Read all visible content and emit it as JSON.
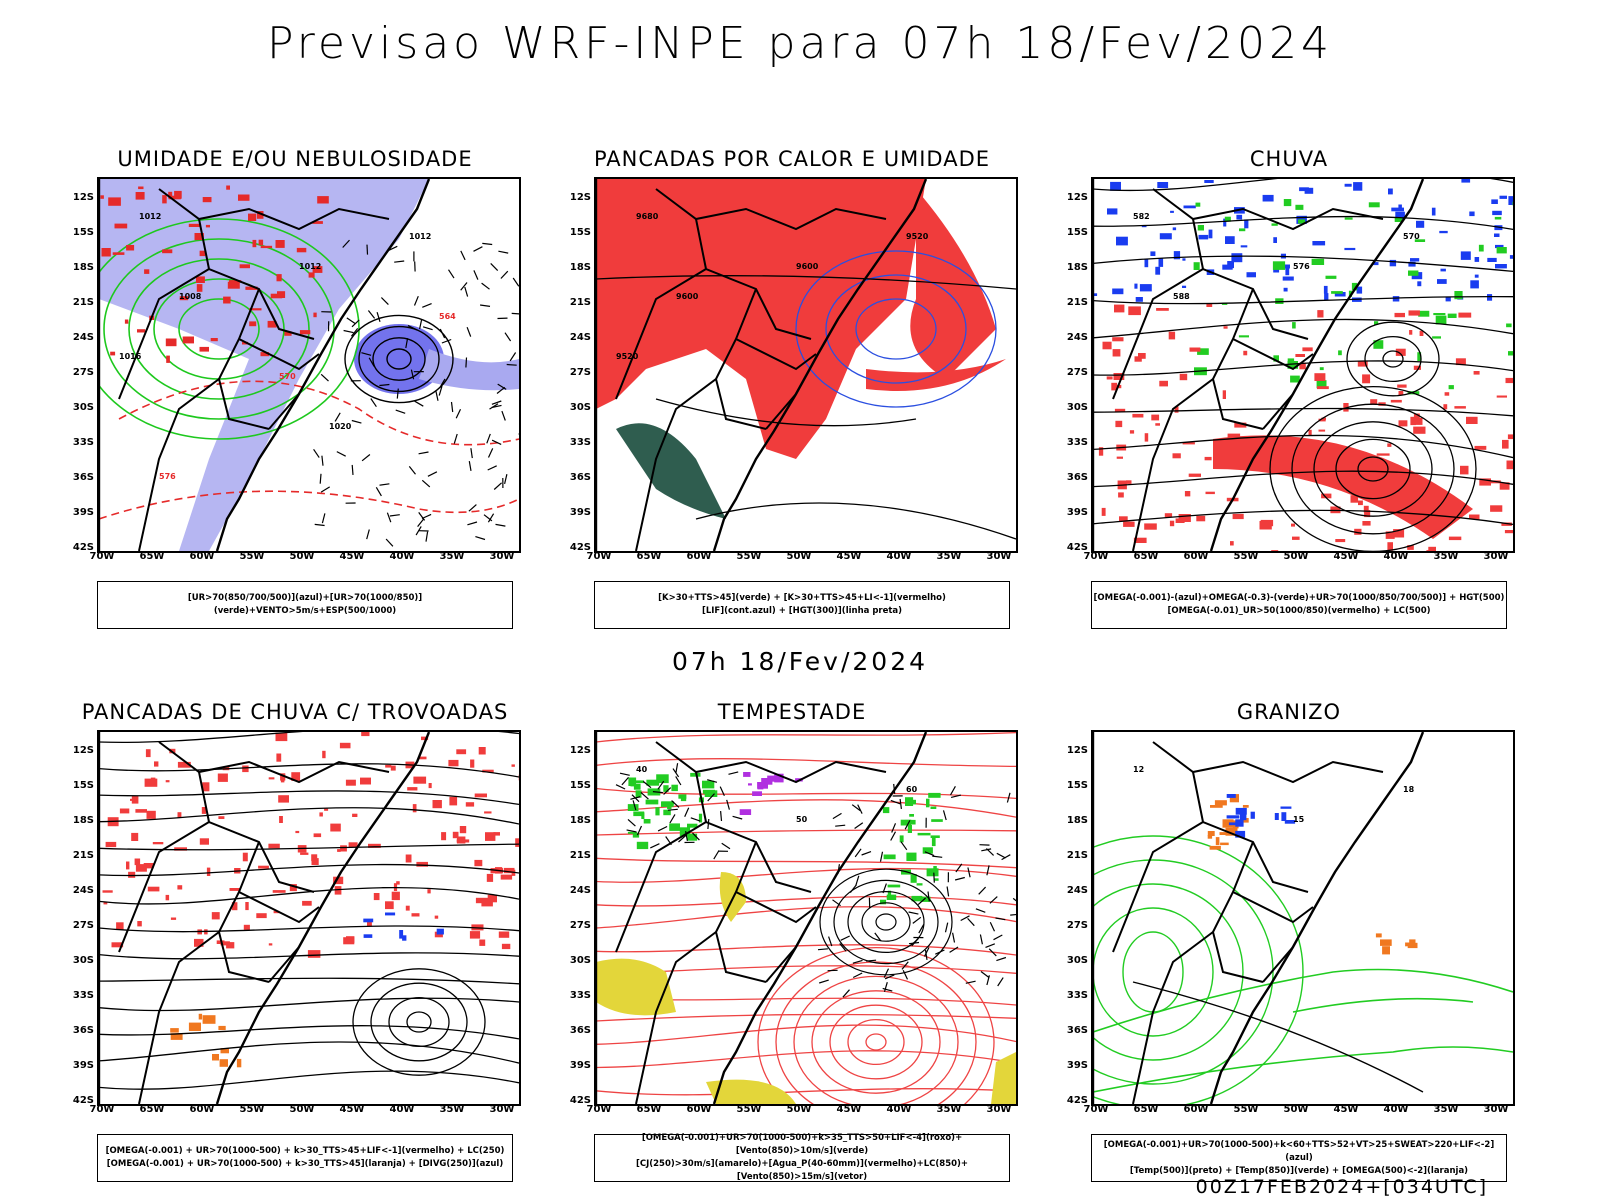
{
  "header": {
    "title": "Previsao WRF-INPE  para 07h 18/Fev/2024",
    "mid_title": "07h 18/Fev/2024",
    "footer": "00Z17FEB2024+[034UTC]"
  },
  "axes": {
    "lat_labels": [
      "12S",
      "15S",
      "18S",
      "21S",
      "24S",
      "27S",
      "30S",
      "33S",
      "36S",
      "39S",
      "42S"
    ],
    "lon_labels": [
      "70W",
      "65W",
      "60W",
      "55W",
      "50W",
      "45W",
      "40W",
      "35W",
      "30W"
    ]
  },
  "panels": [
    {
      "title": "UMIDADE E/OU NEBULOSIDADE",
      "legend": [
        "[UR>70(850/700/500)](azul)+[UR>70(1000/850)](verde)+VENTO>5m/s+ESP(500/1000)"
      ],
      "contour_labels": [
        "1012",
        "1012",
        "1012",
        "1008",
        "1016",
        "1020",
        "576",
        "570",
        "564"
      ],
      "colors": {
        "fill": "#a9a9f0",
        "line1": "#1ec81e",
        "line2": "#e52a2a"
      }
    },
    {
      "title": "PANCADAS POR CALOR E UMIDADE",
      "legend": [
        "[K>30+TTS>45](verde) + [K>30+TTS>45+LI<-1](vermelho)",
        "[LIF](cont.azul) + [HGT(300)](linha preta)"
      ],
      "contour_labels": [
        "9680",
        "9600",
        "9520",
        "9600",
        "9520"
      ],
      "colors": {
        "fill": "#f03c3c",
        "fill2": "#2f5d4f",
        "line1": "#2b4fe0"
      }
    },
    {
      "title": "CHUVA",
      "legend": [
        "[OMEGA(-0.001)-(azul)+OMEGA(-0.3)-(verde)+UR>70(1000/850/700/500)] + HGT(500)",
        "[OMEGA(-0.01)_UR>50(1000/850)(vermelho) + LC(500)"
      ],
      "contour_labels": [
        "582",
        "576",
        "570",
        "588"
      ],
      "colors": {
        "fill": "#f03c3c",
        "fill2": "#1a3cf0",
        "fill3": "#22cc22"
      }
    },
    {
      "title": "PANCADAS DE CHUVA C/ TROVOADAS",
      "legend": [
        "[OMEGA(-0.001) + UR>70(1000-500) + k>30_TTS>45+LIF<-1](vermelho) + LC(250)",
        "[OMEGA(-0.001) + UR>70(1000-500) + k>30_TTS>45](laranja) + [DIVG(250)](azul)"
      ],
      "contour_labels": [],
      "colors": {
        "fill": "#f03c3c",
        "fill2": "#f07820",
        "fill3": "#1a3cf0"
      }
    },
    {
      "title": "TEMPESTADE",
      "legend": [
        "[OMEGA(-0.001)+UR>70(1000-500)+k>35_TTS>50+LIF<-4](roxo)+[Vento(850)>10m/s](verde)",
        "[CJ(250)>30m/s](amarelo)+[Agua_P(40-60mm)](vermelho)+LC(850)+[Vento(850)>15m/s](vetor)"
      ],
      "contour_labels": [
        "40",
        "50",
        "60"
      ],
      "colors": {
        "fill": "#e3d63a",
        "fill2": "#22cc22",
        "line1": "#ee4444",
        "fill3": "#b030e0"
      }
    },
    {
      "title": "GRANIZO",
      "legend": [
        "[OMEGA(-0.001)+UR>70(1000-500)+k<60+TTS>52+VT>25+SWEAT>220+LIF<-2](azul)",
        "[Temp(500)](preto) + [Temp(850)](verde) + [OMEGA(500)<-2](laranja)"
      ],
      "contour_labels": [
        "12",
        "15",
        "18"
      ],
      "colors": {
        "line1": "#22cc22",
        "fill2": "#f07820",
        "fill3": "#1a3cf0"
      }
    }
  ]
}
